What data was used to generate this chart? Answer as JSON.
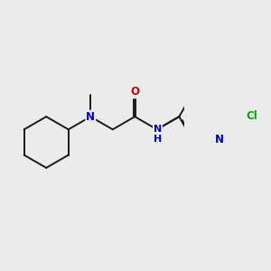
{
  "background_color": "#ebebeb",
  "bond_color": "#1a1a1a",
  "atom_colors": {
    "N": "#0000cc",
    "O": "#cc0000",
    "Cl": "#00aa00",
    "C": "#1a1a1a"
  },
  "figsize": [
    3.0,
    3.0
  ],
  "dpi": 100
}
